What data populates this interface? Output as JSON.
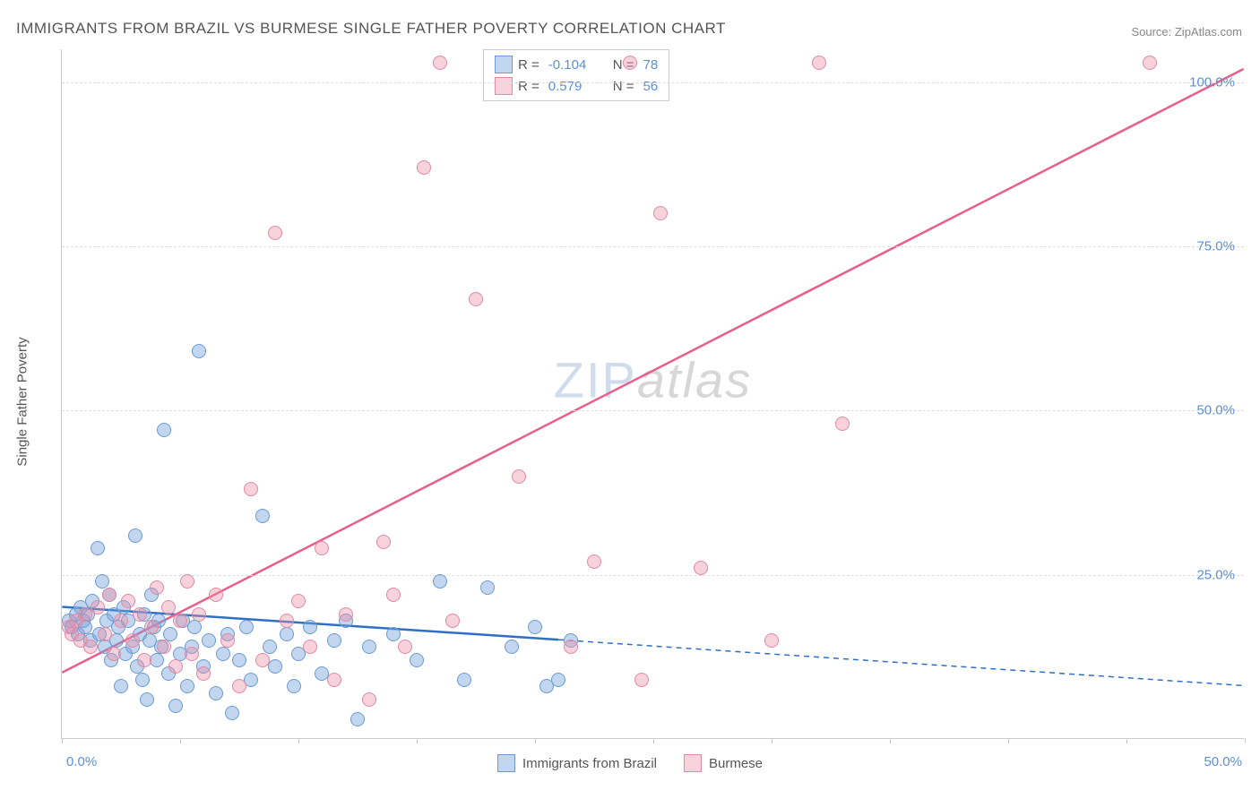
{
  "title": "IMMIGRANTS FROM BRAZIL VS BURMESE SINGLE FATHER POVERTY CORRELATION CHART",
  "source": "Source: ZipAtlas.com",
  "watermark_zip": "ZIP",
  "watermark_atlas": "atlas",
  "y_axis_title": "Single Father Poverty",
  "chart": {
    "type": "scatter",
    "xlim": [
      0,
      50
    ],
    "ylim": [
      0,
      105
    ],
    "x_ticks_pct": [
      0,
      5,
      10,
      15,
      20,
      25,
      30,
      35,
      40,
      45,
      50
    ],
    "y_gridlines": [
      25,
      50,
      75,
      100
    ],
    "y_tick_labels": [
      "25.0%",
      "50.0%",
      "75.0%",
      "100.0%"
    ],
    "x_label_0": "0.0%",
    "x_label_50": "50.0%",
    "background_color": "#ffffff",
    "grid_color": "#dddddd",
    "axis_color": "#cccccc",
    "tick_label_color": "#5b8fd6",
    "series": [
      {
        "name": "Immigrants from Brazil",
        "fill": "rgba(120,165,220,0.45)",
        "stroke": "#6b9bd1",
        "line_color": "#2f6fc4",
        "marker_radius": 8,
        "R": "-0.104",
        "N": "78",
        "trend": {
          "x1": 0,
          "y1": 20,
          "x2": 21,
          "y2": 15,
          "dash_x2": 50,
          "dash_y2": 8
        },
        "points": [
          [
            0.3,
            18
          ],
          [
            0.4,
            17
          ],
          [
            0.6,
            19
          ],
          [
            0.7,
            16
          ],
          [
            0.8,
            20
          ],
          [
            0.9,
            18
          ],
          [
            1.0,
            17
          ],
          [
            1.1,
            19
          ],
          [
            1.2,
            15
          ],
          [
            1.3,
            21
          ],
          [
            1.5,
            29
          ],
          [
            1.6,
            16
          ],
          [
            1.7,
            24
          ],
          [
            1.8,
            14
          ],
          [
            1.9,
            18
          ],
          [
            2.0,
            22
          ],
          [
            2.1,
            12
          ],
          [
            2.2,
            19
          ],
          [
            2.3,
            15
          ],
          [
            2.4,
            17
          ],
          [
            2.5,
            8
          ],
          [
            2.6,
            20
          ],
          [
            2.7,
            13
          ],
          [
            2.8,
            18
          ],
          [
            3.0,
            14
          ],
          [
            3.1,
            31
          ],
          [
            3.2,
            11
          ],
          [
            3.3,
            16
          ],
          [
            3.4,
            9
          ],
          [
            3.5,
            19
          ],
          [
            3.6,
            6
          ],
          [
            3.7,
            15
          ],
          [
            3.8,
            22
          ],
          [
            3.9,
            17
          ],
          [
            4.0,
            12
          ],
          [
            4.1,
            18
          ],
          [
            4.3,
            47
          ],
          [
            4.2,
            14
          ],
          [
            4.5,
            10
          ],
          [
            4.6,
            16
          ],
          [
            4.8,
            5
          ],
          [
            5.0,
            13
          ],
          [
            5.1,
            18
          ],
          [
            5.3,
            8
          ],
          [
            5.5,
            14
          ],
          [
            5.6,
            17
          ],
          [
            5.8,
            59
          ],
          [
            6.0,
            11
          ],
          [
            6.2,
            15
          ],
          [
            6.5,
            7
          ],
          [
            6.8,
            13
          ],
          [
            7.0,
            16
          ],
          [
            7.2,
            4
          ],
          [
            7.5,
            12
          ],
          [
            7.8,
            17
          ],
          [
            8.0,
            9
          ],
          [
            8.5,
            34
          ],
          [
            8.8,
            14
          ],
          [
            9.0,
            11
          ],
          [
            9.5,
            16
          ],
          [
            9.8,
            8
          ],
          [
            10.0,
            13
          ],
          [
            10.5,
            17
          ],
          [
            11.0,
            10
          ],
          [
            11.5,
            15
          ],
          [
            12.0,
            18
          ],
          [
            12.5,
            3
          ],
          [
            13.0,
            14
          ],
          [
            14.0,
            16
          ],
          [
            15.0,
            12
          ],
          [
            16.0,
            24
          ],
          [
            17.0,
            9
          ],
          [
            18.0,
            23
          ],
          [
            19.0,
            14
          ],
          [
            20.0,
            17
          ],
          [
            20.5,
            8
          ],
          [
            21.0,
            9
          ],
          [
            21.5,
            15
          ]
        ]
      },
      {
        "name": "Burmese",
        "fill": "rgba(235,140,165,0.40)",
        "stroke": "#e08aa5",
        "line_color": "#e85f8a",
        "marker_radius": 8,
        "R": "0.579",
        "N": "56",
        "trend": {
          "x1": 0,
          "y1": 10,
          "x2": 50,
          "y2": 102
        },
        "points": [
          [
            0.3,
            17
          ],
          [
            0.4,
            16
          ],
          [
            0.6,
            18
          ],
          [
            0.8,
            15
          ],
          [
            1.0,
            19
          ],
          [
            1.2,
            14
          ],
          [
            1.5,
            20
          ],
          [
            1.8,
            16
          ],
          [
            2.0,
            22
          ],
          [
            2.2,
            13
          ],
          [
            2.5,
            18
          ],
          [
            2.8,
            21
          ],
          [
            3.0,
            15
          ],
          [
            3.3,
            19
          ],
          [
            3.5,
            12
          ],
          [
            3.8,
            17
          ],
          [
            4.0,
            23
          ],
          [
            4.3,
            14
          ],
          [
            4.5,
            20
          ],
          [
            4.8,
            11
          ],
          [
            5.0,
            18
          ],
          [
            5.3,
            24
          ],
          [
            5.5,
            13
          ],
          [
            5.8,
            19
          ],
          [
            6.0,
            10
          ],
          [
            6.5,
            22
          ],
          [
            7.0,
            15
          ],
          [
            7.5,
            8
          ],
          [
            8.0,
            38
          ],
          [
            8.5,
            12
          ],
          [
            9.0,
            77
          ],
          [
            9.5,
            18
          ],
          [
            10.0,
            21
          ],
          [
            10.5,
            14
          ],
          [
            11.0,
            29
          ],
          [
            11.5,
            9
          ],
          [
            12.0,
            19
          ],
          [
            13.0,
            6
          ],
          [
            13.6,
            30
          ],
          [
            14.0,
            22
          ],
          [
            14.5,
            14
          ],
          [
            15.3,
            87
          ],
          [
            16.0,
            103
          ],
          [
            16.5,
            18
          ],
          [
            17.5,
            67
          ],
          [
            19.3,
            40
          ],
          [
            21.5,
            14
          ],
          [
            22.5,
            27
          ],
          [
            24.0,
            103
          ],
          [
            24.5,
            9
          ],
          [
            25.3,
            80
          ],
          [
            27.0,
            26
          ],
          [
            30.0,
            15
          ],
          [
            32.0,
            103
          ],
          [
            33.0,
            48
          ],
          [
            46.0,
            103
          ]
        ]
      }
    ],
    "legend": {
      "R_label": "R =",
      "N_label": "N =",
      "bottom_label_1": "Immigrants from Brazil",
      "bottom_label_2": "Burmese"
    }
  }
}
